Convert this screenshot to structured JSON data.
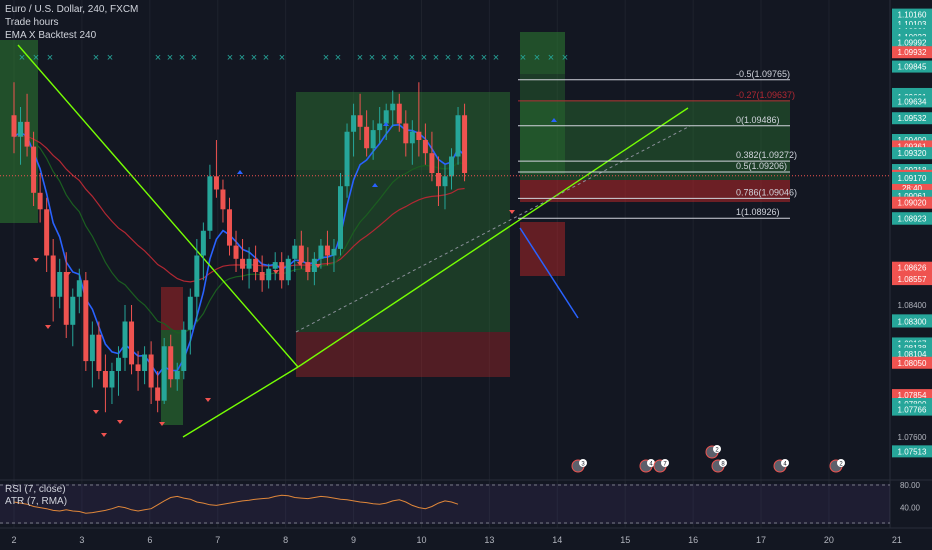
{
  "legend": {
    "symbol": "Euro / U.S. Dollar, 240, FXCM",
    "indicator_1": "Trade hours",
    "indicator_2": "EMA X Backtest 240"
  },
  "rsi_legend": {
    "line_1": "RSI (7, close)",
    "line_2": "ATR (7, RMA)"
  },
  "colors": {
    "background": "#131722",
    "up_candle": "#26a69a",
    "down_candle": "#ef5350",
    "ema_fast": "#2962ff",
    "ema_slow": "#b22833",
    "ema_green": "#1b5e20",
    "trendline": "#76ff03",
    "rsi_line": "#e0873a"
  },
  "chart_data": {
    "type": "candlestick",
    "ylim": [
      1.074,
      1.102
    ],
    "x_ticks": [
      {
        "label": "2",
        "index": 0
      },
      {
        "label": "3",
        "index": 10.4
      },
      {
        "label": "6",
        "index": 20.8
      },
      {
        "label": "7",
        "index": 31.2
      },
      {
        "label": "8",
        "index": 41.6
      },
      {
        "label": "9",
        "index": 52
      },
      {
        "label": "10",
        "index": 62.4
      },
      {
        "label": "13",
        "index": 72.8
      },
      {
        "label": "14",
        "index": 83.2
      },
      {
        "label": "15",
        "index": 93.6
      },
      {
        "label": "16",
        "index": 104
      },
      {
        "label": "17",
        "index": 114.4
      },
      {
        "label": "20",
        "index": 124.8
      },
      {
        "label": "21",
        "index": 135.2
      }
    ],
    "candles": [
      [
        1.0955,
        1.0975,
        1.0932,
        1.0942
      ],
      [
        1.0942,
        1.096,
        1.0925,
        1.0951
      ],
      [
        1.0951,
        1.0968,
        1.093,
        1.0936
      ],
      [
        1.0936,
        1.0945,
        1.09,
        1.0908
      ],
      [
        1.0908,
        1.092,
        1.089,
        1.0898
      ],
      [
        1.0898,
        1.0905,
        1.086,
        1.087
      ],
      [
        1.087,
        1.088,
        1.083,
        1.0845
      ],
      [
        1.0845,
        1.0868,
        1.0838,
        1.086
      ],
      [
        1.086,
        1.0872,
        1.082,
        1.0828
      ],
      [
        1.0828,
        1.085,
        1.0815,
        1.0845
      ],
      [
        1.0845,
        1.0862,
        1.0835,
        1.0855
      ],
      [
        1.0855,
        1.086,
        1.08,
        1.0806
      ],
      [
        1.0806,
        1.083,
        1.079,
        1.0822
      ],
      [
        1.0822,
        1.083,
        1.0795,
        1.08
      ],
      [
        1.08,
        1.081,
        1.0775,
        1.079
      ],
      [
        1.079,
        1.0805,
        1.078,
        1.08
      ],
      [
        1.08,
        1.0815,
        1.0785,
        1.0808
      ],
      [
        1.0808,
        1.084,
        1.08,
        1.083
      ],
      [
        1.083,
        1.084,
        1.0798,
        1.0804
      ],
      [
        1.0804,
        1.0812,
        1.0788,
        1.08
      ],
      [
        1.08,
        1.0815,
        1.0792,
        1.081
      ],
      [
        1.081,
        1.0818,
        1.078,
        1.079
      ],
      [
        1.079,
        1.08,
        1.0775,
        1.0782
      ],
      [
        1.0782,
        1.082,
        1.078,
        1.0815
      ],
      [
        1.0815,
        1.0822,
        1.079,
        1.0795
      ],
      [
        1.0795,
        1.0805,
        1.0788,
        1.08
      ],
      [
        1.08,
        1.083,
        1.0795,
        1.0825
      ],
      [
        1.0825,
        1.085,
        1.081,
        1.0845
      ],
      [
        1.0845,
        1.088,
        1.083,
        1.087
      ],
      [
        1.087,
        1.089,
        1.0855,
        1.0885
      ],
      [
        1.0885,
        1.0925,
        1.088,
        1.0918
      ],
      [
        1.0918,
        1.094,
        1.0905,
        1.091
      ],
      [
        1.091,
        1.0916,
        1.089,
        1.0898
      ],
      [
        1.0898,
        1.0905,
        1.087,
        1.0876
      ],
      [
        1.0876,
        1.0885,
        1.086,
        1.0868
      ],
      [
        1.0868,
        1.088,
        1.0855,
        1.0862
      ],
      [
        1.0862,
        1.0875,
        1.085,
        1.0868
      ],
      [
        1.0868,
        1.0876,
        1.0855,
        1.086
      ],
      [
        1.086,
        1.087,
        1.0848,
        1.0855
      ],
      [
        1.0855,
        1.0865,
        1.085,
        1.0862
      ],
      [
        1.0862,
        1.0872,
        1.0855,
        1.0866
      ],
      [
        1.0866,
        1.0872,
        1.085,
        1.0855
      ],
      [
        1.0855,
        1.087,
        1.0852,
        1.0868
      ],
      [
        1.0868,
        1.088,
        1.086,
        1.0876
      ],
      [
        1.0876,
        1.0885,
        1.0862,
        1.0866
      ],
      [
        1.0866,
        1.0875,
        1.0855,
        1.086
      ],
      [
        1.086,
        1.0872,
        1.0852,
        1.0868
      ],
      [
        1.0868,
        1.088,
        1.0862,
        1.0876
      ],
      [
        1.0876,
        1.0885,
        1.0864,
        1.087
      ],
      [
        1.087,
        1.088,
        1.086,
        1.0874
      ],
      [
        1.0874,
        1.092,
        1.087,
        1.0912
      ],
      [
        1.0912,
        1.095,
        1.0905,
        1.0945
      ],
      [
        1.0945,
        1.0962,
        1.093,
        1.0955
      ],
      [
        1.0955,
        1.0968,
        1.094,
        1.0948
      ],
      [
        1.0948,
        1.0958,
        1.093,
        1.0935
      ],
      [
        1.0935,
        1.0952,
        1.0928,
        1.0946
      ],
      [
        1.0946,
        1.096,
        1.0938,
        1.095
      ],
      [
        1.095,
        1.0962,
        1.094,
        1.0958
      ],
      [
        1.0958,
        1.097,
        1.0948,
        1.0962
      ],
      [
        1.0962,
        1.0968,
        1.0945,
        1.095
      ],
      [
        1.095,
        1.0958,
        1.093,
        1.0938
      ],
      [
        1.0938,
        1.0952,
        1.0925,
        1.0945
      ],
      [
        1.0945,
        1.0975,
        1.093,
        1.094
      ],
      [
        1.094,
        1.095,
        1.0925,
        1.0932
      ],
      [
        1.0932,
        1.0945,
        1.0915,
        1.092
      ],
      [
        1.092,
        1.093,
        1.09,
        1.0912
      ],
      [
        1.0912,
        1.0925,
        1.0898,
        1.0918
      ],
      [
        1.0918,
        1.0935,
        1.091,
        1.093
      ],
      [
        1.093,
        1.096,
        1.0925,
        1.0955
      ],
      [
        1.0955,
        1.0962,
        1.0915,
        1.092
      ]
    ],
    "fib_levels": [
      {
        "label": "-0.5(1.09765)",
        "value": 1.09765
      },
      {
        "label": "-0.27(1.09637)",
        "value": 1.09637
      },
      {
        "label": "0(1.09486)",
        "value": 1.09486
      },
      {
        "label": "0.382(1.09272)",
        "value": 1.09272
      },
      {
        "label": "0.5(1.09206)",
        "value": 1.09206
      },
      {
        "label": "0.786(1.09046)",
        "value": 1.09046
      },
      {
        "label": "1(1.08926)",
        "value": 1.08926
      }
    ],
    "price_labels": [
      {
        "text": "1.10160",
        "value": 1.1016,
        "color": "#26a69a"
      },
      {
        "text": "1.10103",
        "value": 1.10103,
        "color": "#26a69a"
      },
      {
        "text": "1.10061",
        "value": 1.10061,
        "color": "#26a69a"
      },
      {
        "text": "1.10038",
        "value": 1.10038,
        "color": "#26a69a"
      },
      {
        "text": "1.10023",
        "value": 1.10023,
        "color": "#26a69a"
      },
      {
        "text": "1.09992",
        "value": 1.09992,
        "color": "#26a69a"
      },
      {
        "text": "1.09932",
        "value": 1.09932,
        "color": "#ef5350"
      },
      {
        "text": "1.09845",
        "value": 1.09845,
        "color": "#26a69a"
      },
      {
        "text": "1.09679",
        "value": 1.09679,
        "color": "#26a69a"
      },
      {
        "text": "1.09661",
        "value": 1.09661,
        "color": "#26a69a"
      },
      {
        "text": "1.09634",
        "value": 1.09634,
        "color": "#26a69a"
      },
      {
        "text": "1.09532",
        "value": 1.09532,
        "color": "#26a69a"
      },
      {
        "text": "1.09400",
        "value": 1.094,
        "color": "#26a69a"
      },
      {
        "text": "1.09361",
        "value": 1.09361,
        "color": "#ef5350"
      },
      {
        "text": "1.09320",
        "value": 1.0932,
        "color": "#26a69a"
      },
      {
        "text": "1.09218",
        "value": 1.09218,
        "color": "#26a69a"
      },
      {
        "text": "1.09183",
        "value": 1.09183,
        "color": "#ef5350"
      },
      {
        "text": "28:40",
        "value": 1.0911,
        "color": "#ef5350"
      },
      {
        "text": "1.09170",
        "value": 1.0917,
        "color": "#26a69a"
      },
      {
        "text": "1.09061",
        "value": 1.09061,
        "color": "#26a69a"
      },
      {
        "text": "1.09020",
        "value": 1.0902,
        "color": "#ef5350"
      },
      {
        "text": "1.08926",
        "value": 1.08926,
        "color": "#26a69a"
      },
      {
        "text": "1.08923",
        "value": 1.08923,
        "color": "#26a69a"
      },
      {
        "text": "1.08626",
        "value": 1.08626,
        "color": "#ef5350"
      },
      {
        "text": "1.08557",
        "value": 1.08557,
        "color": "#ef5350"
      },
      {
        "text": "1.08400",
        "value": 1.084,
        "color": "none"
      },
      {
        "text": "1.08307",
        "value": 1.08307,
        "color": "#26a69a"
      },
      {
        "text": "1.08300",
        "value": 1.083,
        "color": "#26a69a"
      },
      {
        "text": "1.08167",
        "value": 1.08167,
        "color": "#26a69a"
      },
      {
        "text": "1.08138",
        "value": 1.08138,
        "color": "#26a69a"
      },
      {
        "text": "1.08104",
        "value": 1.08104,
        "color": "#26a69a"
      },
      {
        "text": "1.08050",
        "value": 1.0805,
        "color": "#ef5350"
      },
      {
        "text": "1.07854",
        "value": 1.07854,
        "color": "#ef5350"
      },
      {
        "text": "1.07800",
        "value": 1.078,
        "color": "#26a69a"
      },
      {
        "text": "1.07766",
        "value": 1.07766,
        "color": "#26a69a"
      },
      {
        "text": "1.07600",
        "value": 1.076,
        "color": "none"
      },
      {
        "text": "1.07513",
        "value": 1.07513,
        "color": "#26a69a"
      }
    ],
    "rsi_axis_labels": [
      "80.00",
      "40.00"
    ],
    "rsi_values": [
      50,
      48,
      46,
      42,
      40,
      38,
      35,
      34,
      36,
      34,
      33,
      30,
      31,
      33,
      35,
      38,
      42,
      40,
      36,
      34,
      36,
      38,
      45,
      52,
      58,
      60,
      57,
      55,
      50,
      48,
      45,
      44,
      46,
      48,
      50,
      52,
      53,
      55,
      56,
      57,
      60,
      62,
      61,
      58,
      57,
      56,
      58,
      60,
      59,
      57,
      55,
      54,
      52,
      50,
      49,
      47,
      46,
      48,
      52,
      54,
      50,
      44,
      40,
      38,
      42,
      48,
      52,
      50,
      46
    ]
  }
}
